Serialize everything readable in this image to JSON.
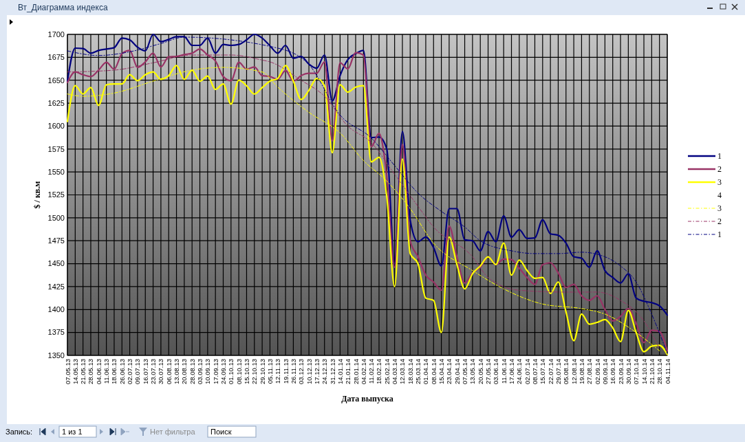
{
  "chart_data": {
    "type": "line",
    "title": "Вт_Диаграмма индекса",
    "xlabel": "Дата выпуска",
    "ylabel": "$ / кв.м",
    "categories": [
      "07.05.13",
      "14.05.13",
      "21.05.13",
      "28.05.13",
      "04.06.13",
      "11.06.13",
      "18.06.13",
      "26.06.13",
      "02.07.13",
      "09.07.13",
      "16.07.13",
      "23.07.13",
      "30.07.13",
      "06.08.13",
      "13.08.13",
      "20.08.13",
      "28.08.13",
      "03.09.13",
      "10.09.13",
      "17.09.13",
      "24.09.13",
      "01.10.13",
      "08.10.13",
      "15.10.13",
      "22.10.13",
      "29.10.13",
      "05.11.13",
      "12.11.13",
      "19.11.13",
      "26.11.13",
      "03.12.13",
      "10.12.13",
      "17.12.13",
      "24.12.13",
      "31.12.13",
      "14.01.14",
      "21.01.14",
      "28.01.14",
      "04.02.14",
      "11.02.14",
      "18.02.14",
      "25.02.14",
      "04.03.14",
      "12.03.14",
      "18.03.14",
      "25.03.14",
      "01.04.14",
      "08.04.14",
      "15.04.14",
      "23.04.14",
      "29.04.14",
      "07.05.14",
      "13.05.14",
      "20.05.14",
      "27.05.14",
      "03.06.14",
      "11.06.14",
      "17.06.14",
      "24.06.14",
      "02.07.14",
      "08.07.14",
      "15.07.14",
      "22.07.14",
      "29.07.14",
      "05.08.14",
      "12.08.14",
      "19.08.14",
      "27.08.14",
      "02.09.14",
      "09.09.14",
      "16.09.14",
      "23.09.14",
      "30.09.14",
      "07.10.14",
      "14.10.14",
      "21.10.14",
      "28.10.14",
      "04.11.14"
    ],
    "series": [
      {
        "name": "1",
        "color": "#000080",
        "values": [
          1649,
          1685,
          1684.5,
          1679.5,
          1682.5,
          1684,
          1685.5,
          1696,
          1694,
          1686,
          1682,
          1700,
          1692,
          1694.5,
          1697.5,
          1697.5,
          1688,
          1688,
          1696,
          1679.5,
          1689,
          1688,
          1689,
          1694,
          1700,
          1696,
          1687.5,
          1679.5,
          1688,
          1674,
          1676,
          1667.5,
          1663,
          1677.5,
          1627.5,
          1655,
          1672.5,
          1679,
          1682.5,
          1587.5,
          1588,
          1575,
          1450,
          1594,
          1497.5,
          1474,
          1479,
          1467.5,
          1447.5,
          1510,
          1510,
          1476,
          1475,
          1464,
          1485,
          1474,
          1502,
          1479,
          1487,
          1477.5,
          1478,
          1498,
          1482.5,
          1481,
          1472.5,
          1457.5,
          1456,
          1446,
          1464,
          1442.5,
          1435,
          1429,
          1439,
          1412.5,
          1409,
          1407.5,
          1404,
          1394
        ]
      },
      {
        "name": "2",
        "color": "#993366",
        "values": [
          1647.5,
          1659,
          1656,
          1654,
          1661,
          1669.5,
          1662,
          1679,
          1682.5,
          1664,
          1670,
          1679.5,
          1664.5,
          1675.5,
          1676,
          1678,
          1679.5,
          1684,
          1677.5,
          1671,
          1654,
          1649.5,
          1669.5,
          1662,
          1664.5,
          1655,
          1654,
          1651,
          1660.5,
          1649,
          1655,
          1657.5,
          1657.5,
          1670,
          1584,
          1669,
          1662.5,
          1680,
          1677.5,
          1577.5,
          1592,
          1545,
          1446,
          1580,
          1475,
          1457.5,
          1437.5,
          1430,
          1421,
          1491,
          1457.5,
          1429,
          1440,
          1446,
          1457.5,
          1449,
          1455,
          1454.5,
          1445,
          1435,
          1427.5,
          1449,
          1451,
          1440,
          1424,
          1427.5,
          1415,
          1410,
          1415,
          1400,
          1387.5,
          1392.5,
          1401,
          1385,
          1364,
          1377.5,
          1376,
          1355
        ]
      },
      {
        "name": "3",
        "color": "#ffff00",
        "values": [
          1605,
          1644,
          1635,
          1642,
          1622.5,
          1645,
          1646,
          1646,
          1656,
          1649.5,
          1656,
          1659,
          1651,
          1655,
          1666,
          1651,
          1661,
          1649,
          1654.5,
          1640,
          1646,
          1624,
          1650,
          1644,
          1635,
          1642,
          1649,
          1652,
          1666,
          1649,
          1629,
          1639,
          1652,
          1644,
          1571,
          1645,
          1637,
          1642.5,
          1644,
          1561,
          1566,
          1522.5,
          1425,
          1564,
          1461,
          1450,
          1412.5,
          1410,
          1375,
          1479,
          1449,
          1422.5,
          1439,
          1447.5,
          1457.5,
          1449,
          1472.5,
          1437.5,
          1454,
          1442.5,
          1434,
          1435,
          1417.5,
          1430,
          1397.5,
          1366,
          1395,
          1384,
          1386,
          1389,
          1380,
          1365,
          1399,
          1375,
          1354,
          1360,
          1361,
          1351
        ]
      },
      {
        "name": "4",
        "values": [
          null,
          null,
          null,
          null,
          null,
          null,
          null,
          null,
          null,
          null,
          null,
          null,
          null,
          null,
          null,
          null,
          null,
          null,
          null,
          null,
          null,
          null,
          null,
          null,
          null,
          null,
          null,
          null,
          null,
          null,
          null,
          null,
          null,
          null,
          null,
          null,
          null,
          null,
          null,
          null,
          null,
          null,
          null,
          null,
          null,
          null,
          null,
          null,
          null,
          null,
          null,
          null,
          null,
          null,
          null,
          null,
          null,
          null,
          null,
          null,
          null,
          null,
          null,
          null,
          null,
          null,
          null,
          null,
          null,
          null,
          null,
          null,
          null,
          null,
          null,
          null,
          null,
          null
        ]
      },
      {
        "name": "3",
        "color": "#ffff00",
        "line_style": "dashed",
        "x": [
          "07.05.13",
          "21.05.13",
          "18.06.13",
          "23.07.13",
          "28.08.13",
          "24.09.13",
          "29.10.13",
          "12.11.13",
          "10.12.13",
          "14.01.14",
          "04.02.14",
          "25.02.14",
          "18.03.14",
          "08.04.14",
          "13.05.14",
          "11.06.14",
          "15.07.14",
          "19.08.14",
          "09.09.14",
          "07.10.14",
          "28.10.14"
        ],
        "values": [
          1635,
          1632.5,
          1636,
          1649,
          1661,
          1664,
          1659,
          1642.5,
          1615,
          1592.5,
          1562.5,
          1540,
          1510,
          1472.5,
          1442.5,
          1422.5,
          1406,
          1401,
          1395,
          1375,
          1355
        ]
      },
      {
        "name": "2",
        "color": "#993366",
        "line_style": "dashed",
        "x": [
          "07.05.13",
          "18.06.13",
          "23.07.13",
          "28.08.13",
          "01.10.13",
          "29.10.13",
          "05.11.13",
          "03.12.13",
          "24.12.13",
          "21.01.14",
          "11.02.14",
          "04.03.14",
          "25.03.14",
          "08.04.14",
          "13.05.14",
          "27.05.14",
          "24.06.14",
          "05.08.14",
          "02.09.14",
          "23.09.14",
          "14.10.14",
          "28.10.14"
        ],
        "values": [
          1659,
          1661,
          1669,
          1677.5,
          1677.5,
          1672,
          1670,
          1650,
          1632.5,
          1600,
          1582,
          1547.5,
          1512.5,
          1490,
          1457.5,
          1435,
          1421,
          1419,
          1419,
          1410,
          1387.5,
          1357.5
        ]
      },
      {
        "name": "1",
        "color": "#000080",
        "line_style": "dashed",
        "x": [
          "07.05.13",
          "04.06.13",
          "02.07.13",
          "30.07.13",
          "20.08.13",
          "12.11.13",
          "10.12.13",
          "14.01.14",
          "11.02.14",
          "04.03.14",
          "25.03.14",
          "15.04.14",
          "07.05.14",
          "20.05.14",
          "17.06.14",
          "08.07.14",
          "29.07.14",
          "19.08.14",
          "09.09.14",
          "23.09.14",
          "07.10.14",
          "21.10.14",
          "04.11.14"
        ],
        "values": [
          1682,
          1677,
          1681,
          1690,
          1697,
          1685,
          1667,
          1612,
          1587,
          1557,
          1527,
          1507,
          1490,
          1475,
          1464,
          1461,
          1461,
          1462.5,
          1457.5,
          1447.5,
          1430,
          1395,
          1352
        ]
      }
    ],
    "ylim": [
      1350,
      1700
    ],
    "yticks": [
      1350,
      1375,
      1400,
      1425,
      1450,
      1475,
      1500,
      1525,
      1550,
      1575,
      1600,
      1625,
      1650,
      1675,
      1700
    ],
    "grid": true,
    "legend": "right",
    "line_style": "solid",
    "marker": "none",
    "annotations": [
      "Запись:",
      "1 из 1",
      "Нет фильтра",
      "Поиск"
    ]
  }
}
